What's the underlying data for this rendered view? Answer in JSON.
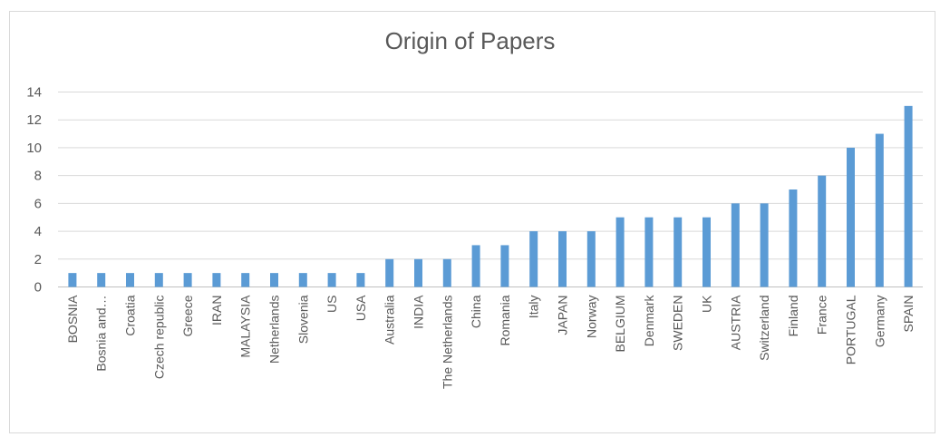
{
  "chart_data": {
    "type": "bar",
    "title": "Origin of Papers",
    "xlabel": "",
    "ylabel": "",
    "ylim": [
      0,
      14
    ],
    "yticks": [
      0,
      2,
      4,
      6,
      8,
      10,
      12,
      14
    ],
    "grid": true,
    "legend": "none",
    "bar_color": "#5b9bd5",
    "categories": [
      "BOSNIA",
      "Bosnia and…",
      "Croatia",
      "Czech republic",
      "Greece",
      "IRAN",
      "MALAYSIA",
      "Netherlands",
      "Slovenia",
      "US",
      "USA",
      "Australia",
      "INDIA",
      "The Netherlands",
      "China",
      "Romania",
      "Italy",
      "JAPAN",
      "Norway",
      "BELGIUM",
      "Denmark",
      "SWEDEN",
      "UK",
      "AUSTRIA",
      "Switzerland",
      "Finland",
      "France",
      "PORTUGAL",
      "Germany",
      "SPAIN"
    ],
    "values": [
      1,
      1,
      1,
      1,
      1,
      1,
      1,
      1,
      1,
      1,
      1,
      2,
      2,
      2,
      3,
      3,
      4,
      4,
      4,
      5,
      5,
      5,
      5,
      6,
      6,
      7,
      8,
      10,
      11,
      13
    ]
  }
}
